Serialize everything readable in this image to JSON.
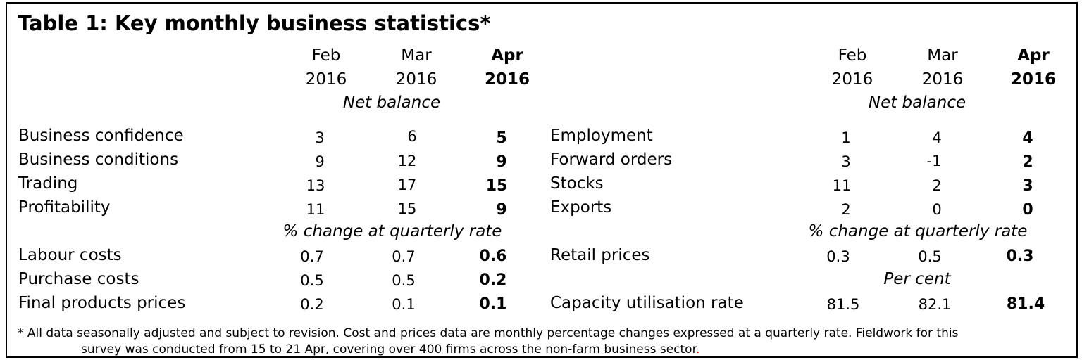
{
  "title": "Table 1:  Key monthly business statistics*",
  "columns": [
    {
      "month": "Feb",
      "year": "2016"
    },
    {
      "month": "Mar",
      "year": "2016"
    },
    {
      "month": "Apr",
      "year": "2016"
    }
  ],
  "subheads": {
    "net_balance": "Net balance",
    "pct_change": "% change at quarterly rate",
    "per_cent": "Per cent"
  },
  "left_rows": [
    {
      "label": "Business confidence",
      "values": [
        "3",
        "6",
        "5"
      ]
    },
    {
      "label": "Business conditions",
      "values": [
        "9",
        "12",
        "9"
      ]
    },
    {
      "label": "Trading",
      "values": [
        "13",
        "17",
        "15"
      ]
    },
    {
      "label": "Profitability",
      "values": [
        "11",
        "15",
        "9"
      ]
    },
    {
      "label": "Labour costs",
      "values": [
        "0.7",
        "0.7",
        "0.6"
      ]
    },
    {
      "label": "Purchase costs",
      "values": [
        "0.5",
        "0.5",
        "0.2"
      ]
    },
    {
      "label": "Final products prices",
      "values": [
        "0.2",
        "0.1",
        "0.1"
      ]
    }
  ],
  "right_rows": [
    {
      "label": "Employment",
      "values": [
        "1",
        "4",
        "4"
      ]
    },
    {
      "label": "Forward orders",
      "values": [
        "3",
        "-1",
        "2"
      ]
    },
    {
      "label": "Stocks",
      "values": [
        "11",
        "2",
        "3"
      ]
    },
    {
      "label": "Exports",
      "values": [
        "2",
        "0",
        "0"
      ]
    },
    {
      "label": "Retail prices",
      "values": [
        "0.3",
        "0.5",
        "0.3"
      ]
    },
    {
      "label": "Capacity utilisation rate",
      "values": [
        "81.5",
        "82.1",
        "81.4"
      ]
    }
  ],
  "footnote": {
    "line1": "* All data seasonally adjusted and subject to revision. Cost and prices data are monthly percentage changes expressed at a quarterly rate. Fieldwork for this",
    "line2": "survey was conducted from 15 to 21 Apr,  covering over 400 firms across the non-farm business sector",
    "line2_end": "."
  }
}
